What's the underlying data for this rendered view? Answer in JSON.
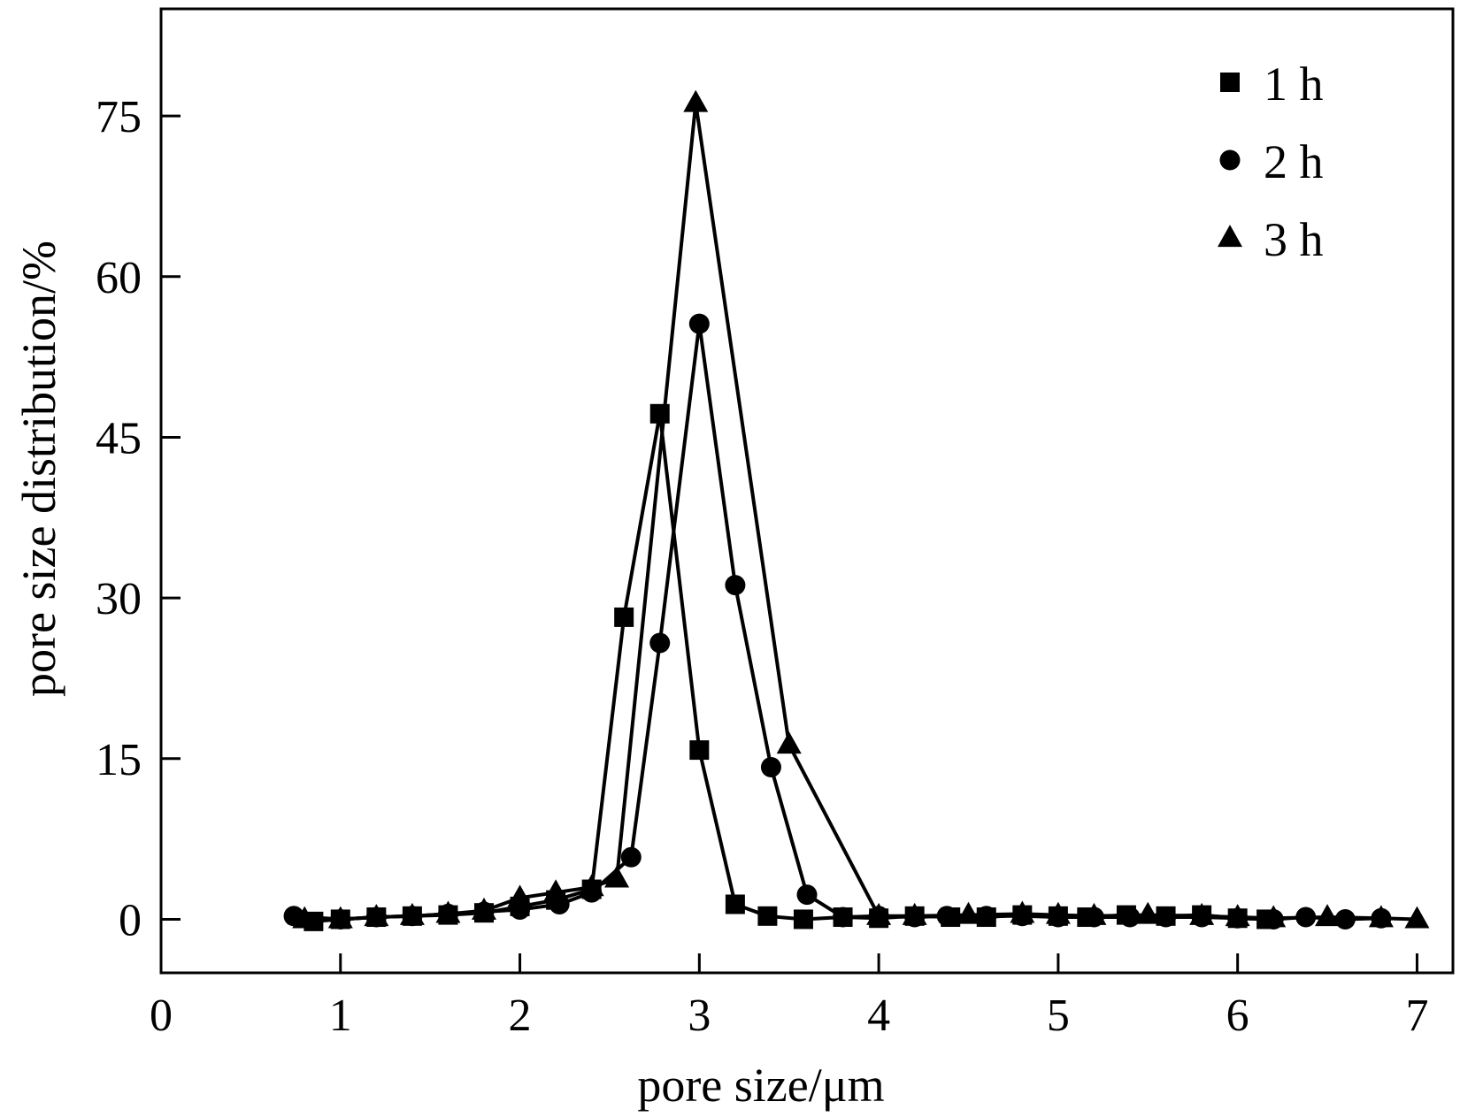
{
  "chart_data": {
    "type": "line",
    "title": "",
    "xlabel": "pore size/μm",
    "ylabel": "pore size distribution/%",
    "xlim": [
      0,
      7.2
    ],
    "ylim": [
      -5,
      85
    ],
    "xticks": [
      0,
      1,
      2,
      3,
      4,
      5,
      6,
      7
    ],
    "yticks": [
      0,
      15,
      30,
      45,
      60,
      75
    ],
    "grid": false,
    "legend_position": "top-right",
    "line_color": "#000000",
    "series": [
      {
        "name": "1 h",
        "marker": "square",
        "x": [
          0.85,
          1.0,
          1.2,
          1.4,
          1.6,
          1.8,
          2.0,
          2.2,
          2.4,
          2.58,
          2.78,
          3.0,
          3.2,
          3.38,
          3.58,
          3.8,
          4.0,
          4.2,
          4.4,
          4.6,
          4.8,
          5.0,
          5.16,
          5.38,
          5.6,
          5.8,
          6.0,
          6.16
        ],
        "y": [
          -0.2,
          0.0,
          0.2,
          0.3,
          0.4,
          0.6,
          1.2,
          1.8,
          2.8,
          28.2,
          47.2,
          15.8,
          1.4,
          0.3,
          0.0,
          0.2,
          0.1,
          0.3,
          0.2,
          0.2,
          0.4,
          0.3,
          0.2,
          0.4,
          0.3,
          0.4,
          0.1,
          0.0
        ]
      },
      {
        "name": "2 h",
        "marker": "circle",
        "x": [
          0.74,
          1.0,
          1.2,
          1.4,
          1.6,
          1.8,
          2.0,
          2.22,
          2.4,
          2.62,
          2.78,
          3.0,
          3.2,
          3.4,
          3.6,
          3.8,
          4.0,
          4.2,
          4.38,
          4.6,
          4.8,
          5.0,
          5.2,
          5.4,
          5.6,
          5.8,
          6.0,
          6.2,
          6.38,
          6.6,
          6.8
        ],
        "y": [
          0.3,
          0.0,
          0.2,
          0.3,
          0.5,
          0.7,
          0.9,
          1.4,
          2.5,
          5.8,
          25.8,
          55.6,
          31.2,
          14.2,
          2.3,
          0.2,
          0.3,
          0.2,
          0.3,
          0.3,
          0.3,
          0.2,
          0.2,
          0.2,
          0.2,
          0.2,
          0.1,
          0.0,
          0.2,
          0.0,
          0.1
        ]
      },
      {
        "name": "3 h",
        "marker": "triangle",
        "x": [
          0.8,
          1.0,
          1.2,
          1.4,
          1.6,
          1.8,
          2.0,
          2.2,
          2.4,
          2.54,
          2.98,
          3.5,
          4.0,
          4.2,
          4.5,
          4.8,
          5.0,
          5.2,
          5.5,
          5.8,
          6.0,
          6.2,
          6.5,
          6.8,
          7.0
        ],
        "y": [
          0.0,
          0.0,
          0.2,
          0.3,
          0.5,
          0.8,
          2.0,
          2.5,
          3.0,
          3.8,
          76.2,
          16.3,
          0.3,
          0.3,
          0.4,
          0.5,
          0.4,
          0.3,
          0.4,
          0.3,
          0.2,
          0.1,
          0.2,
          0.1,
          0.0
        ]
      }
    ]
  }
}
